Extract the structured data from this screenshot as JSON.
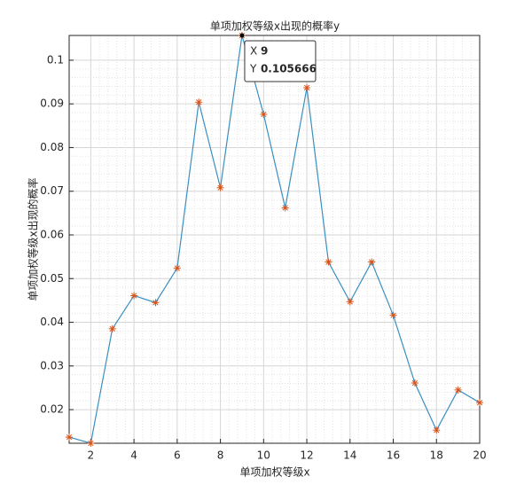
{
  "chart_data": {
    "type": "line",
    "title": "单项加权等级x出现的概率y",
    "x_label": "单项加权等级x",
    "y_label": "单项加权等级x出现的概率",
    "x": [
      1,
      2,
      3,
      4,
      5,
      6,
      7,
      8,
      9,
      10,
      11,
      12,
      13,
      14,
      15,
      16,
      17,
      18,
      19,
      20
    ],
    "values": [
      0.0137,
      0.0123,
      0.0385,
      0.0461,
      0.0445,
      0.0524,
      0.0904,
      0.0708,
      0.105666,
      0.0876,
      0.0662,
      0.0937,
      0.0538,
      0.0447,
      0.0538,
      0.0416,
      0.0261,
      0.0153,
      0.0245,
      0.0216
    ],
    "color": "#3a8fc0",
    "marker_color": "#d95319",
    "xlim": [
      1,
      20
    ],
    "xticks": [
      2,
      4,
      6,
      8,
      10,
      12,
      14,
      16,
      18,
      20
    ],
    "ylim": [
      0.0123,
      0.105666
    ],
    "yticks": [
      0.02,
      0.03,
      0.04,
      0.05,
      0.06,
      0.07,
      0.08,
      0.09,
      0.1
    ],
    "grid": true,
    "minor_grid": true,
    "datatip": {
      "index": 8,
      "x_label": "X",
      "y_label": "Y"
    }
  }
}
